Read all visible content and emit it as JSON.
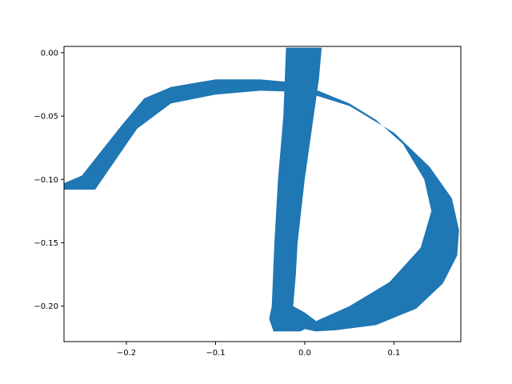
{
  "chart_data": {
    "type": "area",
    "title": "",
    "xlabel": "",
    "ylabel": "",
    "xlim": [
      -0.27,
      0.175
    ],
    "ylim": [
      -0.228,
      0.005
    ],
    "grid": false,
    "legend": "none",
    "fill_color": "#1f77b4",
    "x_ticks": [
      {
        "value": -0.2,
        "label": "−0.2"
      },
      {
        "value": -0.1,
        "label": "−0.1"
      },
      {
        "value": 0.0,
        "label": "0.0"
      },
      {
        "value": 0.1,
        "label": "0.1"
      }
    ],
    "y_ticks": [
      {
        "value": 0.0,
        "label": "0.00"
      },
      {
        "value": -0.05,
        "label": "−0.05"
      },
      {
        "value": -0.1,
        "label": "−0.10"
      },
      {
        "value": -0.15,
        "label": "−0.15"
      },
      {
        "value": -0.2,
        "label": "−0.20"
      }
    ],
    "shapes": [
      {
        "name": "arc-stroke",
        "x": [
          -0.27,
          -0.235,
          -0.188,
          -0.15,
          -0.1,
          -0.05,
          0.0,
          0.05,
          0.1,
          0.14,
          0.165,
          0.173,
          0.171,
          0.155,
          0.125,
          0.08,
          0.035,
          0.012,
          0.0,
          0.015,
          0.05,
          0.095,
          0.13,
          0.142,
          0.134,
          0.11,
          0.08,
          0.05,
          0.015,
          -0.02,
          -0.05,
          -0.1,
          -0.15,
          -0.18,
          -0.205,
          -0.25,
          -0.27
        ],
        "y": [
          -0.108,
          -0.108,
          -0.06,
          -0.04,
          -0.033,
          -0.03,
          -0.031,
          -0.042,
          -0.063,
          -0.09,
          -0.115,
          -0.14,
          -0.16,
          -0.182,
          -0.202,
          -0.215,
          -0.219,
          -0.22,
          -0.218,
          -0.211,
          -0.2,
          -0.181,
          -0.154,
          -0.125,
          -0.1,
          -0.072,
          -0.053,
          -0.04,
          -0.03,
          -0.023,
          -0.021,
          -0.021,
          -0.027,
          -0.036,
          -0.057,
          -0.097,
          -0.103
        ]
      },
      {
        "name": "vertical-stroke",
        "x": [
          -0.021,
          0.019,
          0.016,
          0.01,
          0.0,
          -0.008,
          -0.01,
          -0.013,
          0.0,
          0.015,
          -0.005,
          -0.035,
          -0.04,
          -0.037,
          -0.034,
          -0.03,
          -0.024
        ],
        "y": [
          0.004,
          0.004,
          -0.02,
          -0.05,
          -0.1,
          -0.15,
          -0.175,
          -0.2,
          -0.205,
          -0.213,
          -0.22,
          -0.22,
          -0.21,
          -0.2,
          -0.15,
          -0.1,
          -0.05
        ]
      }
    ]
  }
}
